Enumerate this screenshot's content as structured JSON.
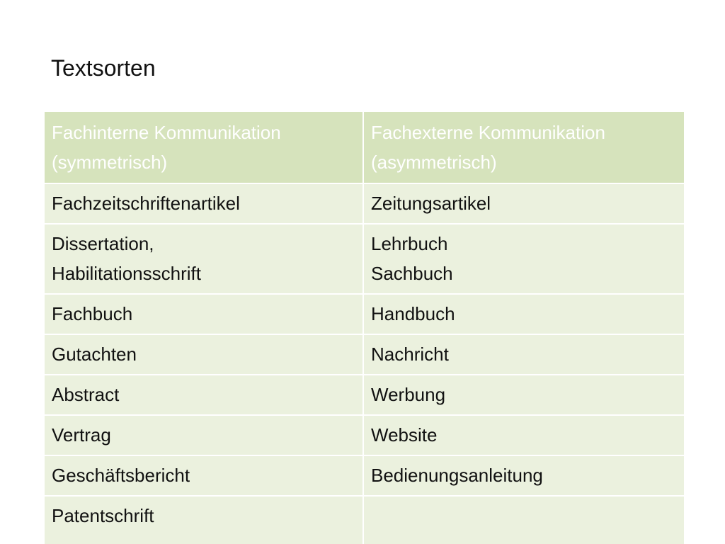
{
  "title": "Textsorten",
  "table": {
    "headers": [
      "Fachinterne Kommunikation\n(symmetrisch)",
      "Fachexterne Kommunikation\n(asymmetrisch)"
    ],
    "rows": [
      [
        "Fachzeitschriftenartikel",
        "Zeitungsartikel"
      ],
      [
        "Dissertation,\nHabilitationsschrift",
        "Lehrbuch\nSachbuch"
      ],
      [
        "Fachbuch",
        "Handbuch"
      ],
      [
        "Gutachten",
        "Nachricht"
      ],
      [
        "Abstract",
        "Werbung"
      ],
      [
        "Vertrag",
        "Website"
      ],
      [
        "Geschäftsbericht",
        "Bedienungsanleitung"
      ],
      [
        "Patentschrift",
        ""
      ]
    ]
  },
  "colors": {
    "header_bg": "#d6e3bc",
    "row_bg": "#ebf1de",
    "header_text": "#ffffff"
  }
}
